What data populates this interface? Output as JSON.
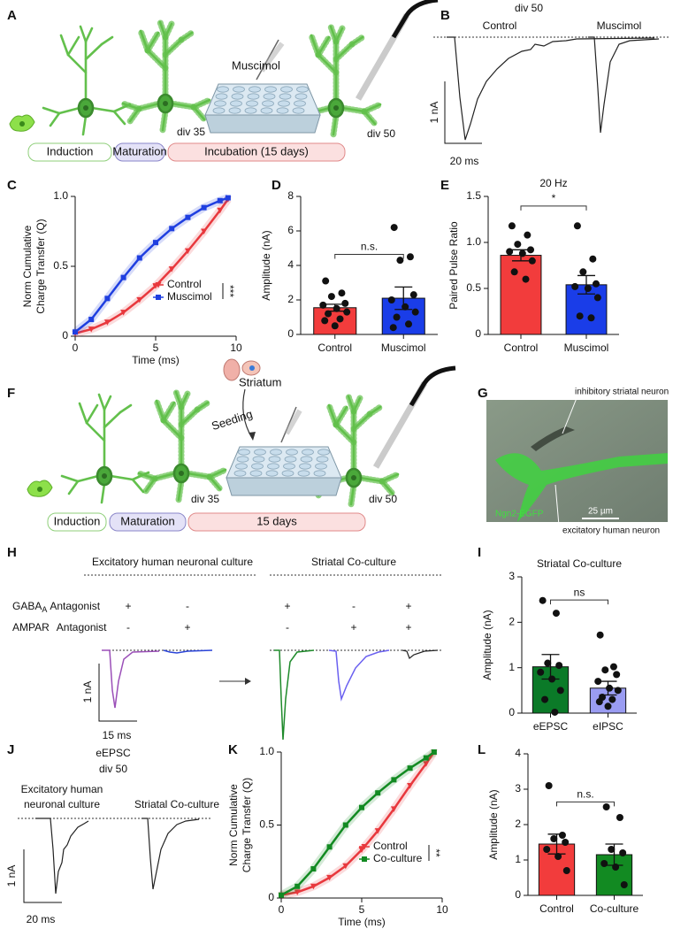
{
  "panel_a": {
    "letter": "A",
    "drug": "Muscimol",
    "div_start": "div 35",
    "div_end": "div 50",
    "stages": [
      "Induction",
      "Maturation",
      "Incubation (15 days)"
    ]
  },
  "panel_b": {
    "letter": "B",
    "title": "div 50",
    "conditions": [
      "Control",
      "Muscimol"
    ],
    "scale_current": "1 nA",
    "scale_time": "20 ms"
  },
  "panel_f": {
    "letter": "F",
    "source": "Striatum",
    "step": "Seeding",
    "div_start": "div 35",
    "div_end": "div 50",
    "stages": [
      "Induction",
      "Maturation",
      "15 days"
    ]
  },
  "panel_g": {
    "letter": "G",
    "top_label": "inhibitory striatal neuron",
    "bottom_label": "excitatory human neuron",
    "channel": "Ngn2-EGFP",
    "scale_bar": "25 µm"
  },
  "panel_h": {
    "letter": "H",
    "groups": [
      "Excitatory human neuronal culture",
      "Striatal Co-culture"
    ],
    "row_labels": [
      {
        "name": "GABA",
        "subscript": "A",
        "suffix": "Antagonist"
      },
      {
        "name": "AMPAR",
        "suffix": "Antagonist"
      }
    ],
    "signs": {
      "gaba": [
        "+",
        "-",
        "+",
        "-",
        "+"
      ],
      "ampar": [
        "-",
        "+",
        "-",
        "+",
        "+"
      ]
    },
    "scale_current": "1 nA",
    "scale_time": "15 ms"
  },
  "panel_j": {
    "letter": "J",
    "title": [
      "eEPSC",
      "div 50"
    ],
    "conditions": [
      [
        "Excitatory human",
        "neuronal culture"
      ],
      [
        "Striatal Co-culture"
      ]
    ],
    "scale_current": "1 nA",
    "scale_time": "20 ms"
  },
  "chart_data": [
    {
      "letter": "C",
      "type": "line",
      "x": [
        0,
        1,
        2,
        3,
        4,
        5,
        6,
        7,
        8,
        9,
        9.5
      ],
      "series": [
        {
          "name": "Control",
          "color": "#e8383d",
          "marker": "triangle",
          "values": [
            0.02,
            0.05,
            0.1,
            0.17,
            0.26,
            0.36,
            0.48,
            0.61,
            0.75,
            0.9,
            0.98
          ]
        },
        {
          "name": "Muscimol",
          "color": "#1f3fe0",
          "marker": "square",
          "values": [
            0.03,
            0.12,
            0.27,
            0.42,
            0.56,
            0.67,
            0.77,
            0.85,
            0.92,
            0.97,
            0.99
          ]
        }
      ],
      "xlabel": "Time (ms)",
      "ylabel": [
        "Norm Cumulative",
        "Charge Transfer (Q)"
      ],
      "xlim": [
        0,
        10
      ],
      "xticks": [
        0,
        5,
        10
      ],
      "ylim": [
        0,
        1
      ],
      "yticks": [
        0,
        0.5,
        {
          "value": 1,
          "label": "1.0"
        }
      ],
      "legend": "lower right",
      "annotation": "***"
    },
    {
      "letter": "D",
      "type": "bar",
      "categories": [
        "Control",
        "Muscimol"
      ],
      "values": [
        1.55,
        2.1
      ],
      "errors": [
        0.2,
        0.65
      ],
      "colors": [
        "#f23c3c",
        "#1a3de8"
      ],
      "points": [
        [
          3.1,
          2.4,
          2.2,
          1.8,
          1.7,
          1.5,
          1.3,
          1.2,
          0.9,
          0.8,
          0.5
        ],
        [
          6.2,
          4.5,
          4.3,
          2.3,
          2.0,
          1.6,
          1.3,
          1.0,
          0.6,
          0.4
        ]
      ],
      "ylabel": "Amplitude (nA)",
      "ylim": [
        0,
        8
      ],
      "yticks": [
        0,
        2,
        4,
        6,
        8
      ],
      "annotation": "n.s."
    },
    {
      "letter": "E",
      "type": "bar",
      "title": "20 Hz",
      "categories": [
        "Control",
        "Muscimol"
      ],
      "values": [
        0.86,
        0.54
      ],
      "errors": [
        0.06,
        0.1
      ],
      "colors": [
        "#f23c3c",
        "#1a3de8"
      ],
      "points": [
        [
          1.18,
          1.08,
          0.98,
          0.92,
          0.9,
          0.88,
          0.8,
          0.68,
          0.6
        ],
        [
          1.18,
          0.82,
          0.68,
          0.55,
          0.52,
          0.5,
          0.4,
          0.2,
          0.18
        ]
      ],
      "ylabel": "Paired Pulse Ratio",
      "ylim": [
        0,
        1.5
      ],
      "yticks": [
        0,
        0.5,
        {
          "value": 1,
          "label": "1.0"
        },
        1.5
      ],
      "annotation": "*"
    },
    {
      "letter": "I",
      "type": "bar",
      "title": "Striatal Co-culture",
      "categories": [
        "eEPSC",
        "eIPSC"
      ],
      "values": [
        1.02,
        0.55
      ],
      "errors": [
        0.27,
        0.15
      ],
      "colors": [
        "#0b7a28",
        "#9a9cf2"
      ],
      "points": [
        [
          2.48,
          2.2,
          1.1,
          1.05,
          0.9,
          0.75,
          0.5,
          0.3,
          0.02
        ],
        [
          1.72,
          1.02,
          0.95,
          0.85,
          0.7,
          0.55,
          0.5,
          0.35,
          0.3,
          0.25,
          0.15
        ]
      ],
      "ylabel": "Amplitude (nA)",
      "ylim": [
        0,
        3
      ],
      "yticks": [
        0,
        1,
        2,
        3
      ],
      "annotation": "ns"
    },
    {
      "letter": "K",
      "type": "line",
      "x": [
        0,
        1,
        2,
        3,
        4,
        5,
        6,
        7,
        8,
        9,
        9.5
      ],
      "series": [
        {
          "name": "Control",
          "color": "#e8383d",
          "marker": "triangle",
          "values": [
            0.02,
            0.04,
            0.08,
            0.14,
            0.22,
            0.33,
            0.46,
            0.61,
            0.77,
            0.92,
            1.0
          ]
        },
        {
          "name": "Co-culture",
          "color": "#128a22",
          "marker": "square",
          "values": [
            0.02,
            0.08,
            0.2,
            0.35,
            0.5,
            0.62,
            0.72,
            0.81,
            0.89,
            0.96,
            1.0
          ]
        }
      ],
      "xlabel": "Time (ms)",
      "ylabel": [
        "Norm Cumulative",
        "Charge Transfer (Q)"
      ],
      "xlim": [
        0,
        10
      ],
      "xticks": [
        0,
        5,
        10
      ],
      "ylim": [
        0,
        1
      ],
      "yticks": [
        0,
        0.5,
        {
          "value": 1,
          "label": "1.0"
        }
      ],
      "legend": "lower right",
      "annotation": "**"
    },
    {
      "letter": "L",
      "type": "bar",
      "categories": [
        "Control",
        "Co-culture"
      ],
      "values": [
        1.45,
        1.15
      ],
      "errors": [
        0.28,
        0.3
      ],
      "colors": [
        "#f23c3c",
        "#128a22"
      ],
      "points": [
        [
          3.1,
          1.7,
          1.6,
          1.5,
          1.3,
          1.1,
          0.7
        ],
        [
          2.5,
          2.2,
          1.3,
          1.2,
          0.9,
          0.8,
          0.3
        ]
      ],
      "ylabel": "Amplitude (nA)",
      "ylim": [
        0,
        4
      ],
      "yticks": [
        0,
        1,
        2,
        3,
        4
      ],
      "annotation": "n.s."
    }
  ]
}
